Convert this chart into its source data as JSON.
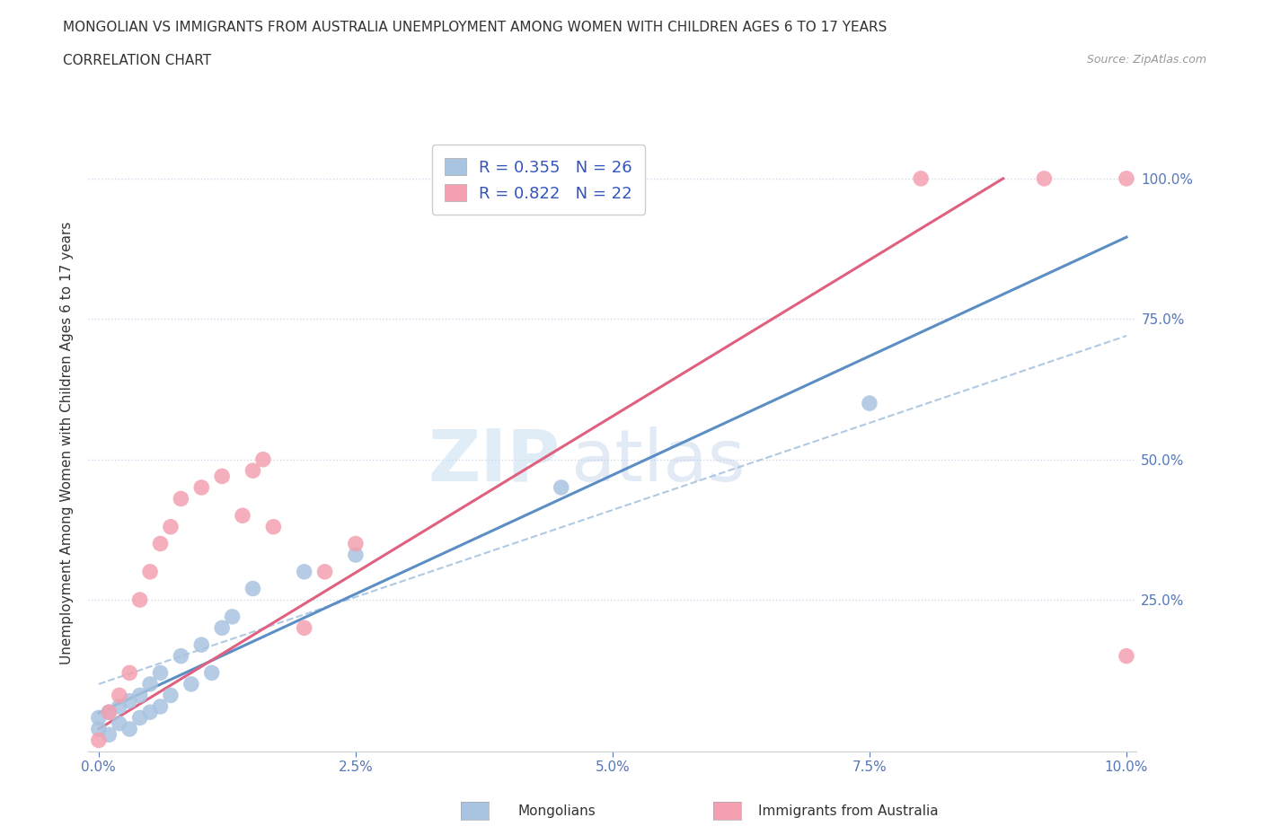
{
  "title_line1": "MONGOLIAN VS IMMIGRANTS FROM AUSTRALIA UNEMPLOYMENT AMONG WOMEN WITH CHILDREN AGES 6 TO 17 YEARS",
  "title_line2": "CORRELATION CHART",
  "source_text": "Source: ZipAtlas.com",
  "ylabel": "Unemployment Among Women with Children Ages 6 to 17 years",
  "xlim": [
    -0.001,
    0.101
  ],
  "ylim": [
    -0.02,
    1.08
  ],
  "xtick_labels": [
    "0.0%",
    "2.5%",
    "5.0%",
    "7.5%",
    "10.0%"
  ],
  "xtick_vals": [
    0.0,
    0.025,
    0.05,
    0.075,
    0.1
  ],
  "ytick_labels": [
    "100.0%",
    "75.0%",
    "50.0%",
    "25.0%"
  ],
  "ytick_vals": [
    1.0,
    0.75,
    0.5,
    0.25
  ],
  "mongolian_color": "#a8c4e0",
  "australia_color": "#f4a0b0",
  "mongolian_line_color": "#5b8ec4",
  "mongolian_dash_color": "#a8c4e0",
  "australia_line_color": "#e06080",
  "mongolian_scatter_x": [
    0.0,
    0.0,
    0.001,
    0.001,
    0.002,
    0.002,
    0.003,
    0.003,
    0.004,
    0.004,
    0.005,
    0.005,
    0.006,
    0.006,
    0.007,
    0.008,
    0.009,
    0.01,
    0.011,
    0.012,
    0.013,
    0.015,
    0.02,
    0.025,
    0.045,
    0.075
  ],
  "mongolian_scatter_y": [
    0.02,
    0.04,
    0.01,
    0.05,
    0.03,
    0.06,
    0.02,
    0.07,
    0.04,
    0.08,
    0.05,
    0.1,
    0.06,
    0.12,
    0.08,
    0.15,
    0.1,
    0.17,
    0.12,
    0.2,
    0.22,
    0.27,
    0.3,
    0.33,
    0.45,
    0.6
  ],
  "australia_scatter_x": [
    0.0,
    0.001,
    0.002,
    0.003,
    0.004,
    0.005,
    0.006,
    0.007,
    0.008,
    0.01,
    0.012,
    0.014,
    0.015,
    0.016,
    0.017,
    0.02,
    0.022,
    0.025,
    0.08,
    0.092,
    0.1,
    0.1
  ],
  "australia_scatter_y": [
    0.0,
    0.05,
    0.08,
    0.12,
    0.25,
    0.3,
    0.35,
    0.38,
    0.43,
    0.45,
    0.47,
    0.4,
    0.48,
    0.5,
    0.38,
    0.2,
    0.3,
    0.35,
    1.0,
    1.0,
    0.15,
    1.0
  ],
  "legend_mongolian_label": "R = 0.355   N = 26",
  "legend_australia_label": "R = 0.822   N = 22",
  "mongolian_bottom_label": "Mongolians",
  "australia_bottom_label": "Immigrants from Australia",
  "watermark_zip": "ZIP",
  "watermark_atlas": "atlas",
  "background_color": "#ffffff",
  "grid_color": "#d0d8e8"
}
